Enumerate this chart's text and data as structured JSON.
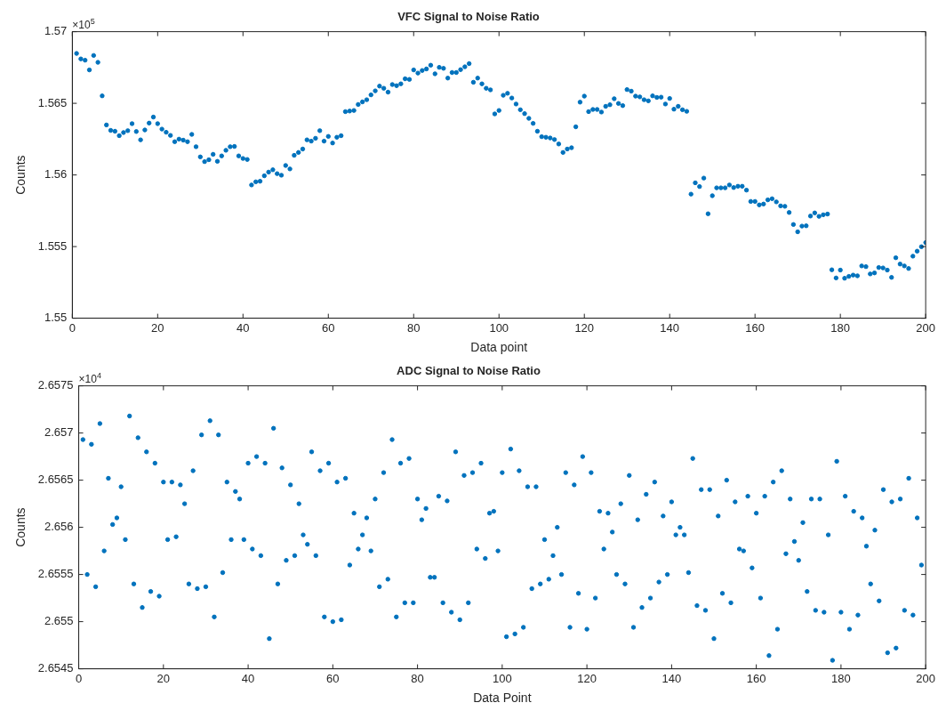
{
  "chart_data": [
    {
      "type": "scatter",
      "title": "VFC Signal to Noise Ratio",
      "xlabel": "Data point",
      "ylabel": "Counts",
      "annotations": [
        "×10$^{5}$"
      ],
      "marker": "circle",
      "xlim": [
        0,
        200
      ],
      "xticks": [
        0,
        20,
        40,
        60,
        80,
        100,
        120,
        140,
        160,
        180,
        200
      ],
      "ylim": [
        1.55,
        1.57
      ],
      "yticks": [
        1.55,
        1.555,
        1.56,
        1.565,
        1.57
      ],
      "x": [
        1,
        2,
        3,
        4,
        5,
        6,
        7,
        8,
        9,
        10,
        11,
        12,
        13,
        14,
        15,
        16,
        17,
        18,
        19,
        20,
        21,
        22,
        23,
        24,
        25,
        26,
        27,
        28,
        29,
        30,
        31,
        32,
        33,
        34,
        35,
        36,
        37,
        38,
        39,
        40,
        41,
        42,
        43,
        44,
        45,
        46,
        47,
        48,
        49,
        50,
        51,
        52,
        53,
        54,
        55,
        56,
        57,
        58,
        59,
        60,
        61,
        62,
        63,
        64,
        65,
        66,
        67,
        68,
        69,
        70,
        71,
        72,
        73,
        74,
        75,
        76,
        77,
        78,
        79,
        80,
        81,
        82,
        83,
        84,
        85,
        86,
        87,
        88,
        89,
        90,
        91,
        92,
        93,
        94,
        95,
        96,
        97,
        98,
        99,
        100,
        101,
        102,
        103,
        104,
        105,
        106,
        107,
        108,
        109,
        110,
        111,
        112,
        113,
        114,
        115,
        116,
        117,
        118,
        119,
        120,
        121,
        122,
        123,
        124,
        125,
        126,
        127,
        128,
        129,
        130,
        131,
        132,
        133,
        134,
        135,
        136,
        137,
        138,
        139,
        140,
        141,
        142,
        143,
        144,
        145,
        146,
        147,
        148,
        149,
        150,
        151,
        152,
        153,
        154,
        155,
        156,
        157,
        158,
        159,
        160,
        161,
        162,
        163,
        164,
        165,
        166,
        167,
        168,
        169,
        170,
        171,
        172,
        173,
        174,
        175,
        176,
        177,
        178,
        179,
        180,
        181,
        182,
        183,
        184,
        185,
        186,
        187,
        188,
        189,
        190,
        191,
        192,
        193,
        194,
        195,
        196,
        197,
        198,
        199,
        200
      ],
      "series": [
        {
          "color": "#0072bd",
          "values": [
            1.56848,
            1.5681,
            1.56801,
            1.56733,
            1.56834,
            1.56786,
            1.56552,
            1.56349,
            1.56311,
            1.56305,
            1.56274,
            1.56296,
            1.56309,
            1.56358,
            1.56303,
            1.56245,
            1.56314,
            1.56362,
            1.56404,
            1.56358,
            1.5632,
            1.56298,
            1.56276,
            1.56232,
            1.5625,
            1.56243,
            1.56232,
            1.56283,
            1.56197,
            1.56126,
            1.56093,
            1.56106,
            1.56144,
            1.56095,
            1.56133,
            1.56172,
            1.56197,
            1.56199,
            1.56133,
            1.56115,
            1.56108,
            1.5593,
            1.55952,
            1.55956,
            1.55994,
            1.5602,
            1.56036,
            1.56009,
            1.55998,
            1.56066,
            1.56042,
            1.56137,
            1.56157,
            1.56181,
            1.56245,
            1.56236,
            1.56256,
            1.56309,
            1.56236,
            1.56269,
            1.56223,
            1.56263,
            1.56274,
            1.56442,
            1.56446,
            1.5645,
            1.56492,
            1.5651,
            1.56525,
            1.56559,
            1.56587,
            1.5662,
            1.56605,
            1.56578,
            1.56631,
            1.56623,
            1.56636,
            1.56671,
            1.56667,
            1.56733,
            1.56711,
            1.56729,
            1.5674,
            1.56766,
            1.56706,
            1.56751,
            1.56744,
            1.56676,
            1.56715,
            1.56715,
            1.56735,
            1.56755,
            1.56777,
            1.56647,
            1.56676,
            1.56636,
            1.56605,
            1.56594,
            1.56426,
            1.5645,
            1.56556,
            1.5657,
            1.56537,
            1.56495,
            1.56455,
            1.56428,
            1.56395,
            1.5636,
            1.56305,
            1.56267,
            1.56263,
            1.56258,
            1.56247,
            1.56216,
            1.56157,
            1.56181,
            1.5619,
            1.56336,
            1.56508,
            1.5655,
            1.56442,
            1.56457,
            1.56457,
            1.56439,
            1.56479,
            1.5649,
            1.56532,
            1.56499,
            1.56484,
            1.56596,
            1.56585,
            1.5655,
            1.56545,
            1.56525,
            1.56517,
            1.56552,
            1.56541,
            1.56543,
            1.56495,
            1.56534,
            1.56459,
            1.56479,
            1.56455,
            1.56444,
            1.55866,
            1.55945,
            1.55919,
            1.55978,
            1.55729,
            1.55855,
            1.5591,
            1.5591,
            1.5591,
            1.5593,
            1.55912,
            1.55921,
            1.55921,
            1.55894,
            1.55815,
            1.55815,
            1.55791,
            1.55797,
            1.55826,
            1.55834,
            1.55812,
            1.55784,
            1.55781,
            1.55738,
            1.55654,
            1.55603,
            1.55643,
            1.55645,
            1.55713,
            1.55735,
            1.55711,
            1.55722,
            1.55727,
            1.55338,
            1.55281,
            1.55336,
            1.55279,
            1.55292,
            1.55301,
            1.55296,
            1.55365,
            1.5536,
            1.55309,
            1.55316,
            1.55354,
            1.55351,
            1.55336,
            1.55285,
            1.55422,
            1.55378,
            1.55365,
            1.55347,
            1.55433,
            1.55468,
            1.55499,
            1.55528
          ]
        }
      ]
    },
    {
      "type": "scatter",
      "title": "ADC Signal to Noise Ratio",
      "xlabel": "Data Point",
      "ylabel": "Counts",
      "annotations": [
        "×10$^{4}$"
      ],
      "marker": "circle",
      "xlim": [
        0,
        200
      ],
      "xticks": [
        0,
        20,
        40,
        60,
        80,
        100,
        120,
        140,
        160,
        180,
        200
      ],
      "ylim": [
        2.6545,
        2.6575
      ],
      "yticks": [
        2.6545,
        2.655,
        2.6555,
        2.656,
        2.6565,
        2.657,
        2.6575
      ],
      "x": [
        1,
        2,
        3,
        4,
        5,
        6,
        7,
        8,
        9,
        10,
        11,
        12,
        13,
        14,
        15,
        16,
        17,
        18,
        19,
        20,
        21,
        22,
        23,
        24,
        25,
        26,
        27,
        28,
        29,
        30,
        31,
        32,
        33,
        34,
        35,
        36,
        37,
        38,
        39,
        40,
        41,
        42,
        43,
        44,
        45,
        46,
        47,
        48,
        49,
        50,
        51,
        52,
        53,
        54,
        55,
        56,
        57,
        58,
        59,
        60,
        61,
        62,
        63,
        64,
        65,
        66,
        67,
        68,
        69,
        70,
        71,
        72,
        73,
        74,
        75,
        76,
        77,
        78,
        79,
        80,
        81,
        82,
        83,
        84,
        85,
        86,
        87,
        88,
        89,
        90,
        91,
        92,
        93,
        94,
        95,
        96,
        97,
        98,
        99,
        100,
        101,
        102,
        103,
        104,
        105,
        106,
        107,
        108,
        109,
        110,
        111,
        112,
        113,
        114,
        115,
        116,
        117,
        118,
        119,
        120,
        121,
        122,
        123,
        124,
        125,
        126,
        127,
        128,
        129,
        130,
        131,
        132,
        133,
        134,
        135,
        136,
        137,
        138,
        139,
        140,
        141,
        142,
        143,
        144,
        145,
        146,
        147,
        148,
        149,
        150,
        151,
        152,
        153,
        154,
        155,
        156,
        157,
        158,
        159,
        160,
        161,
        162,
        163,
        164,
        165,
        166,
        167,
        168,
        169,
        170,
        171,
        172,
        173,
        174,
        175,
        176,
        177,
        178,
        179,
        180,
        181,
        182,
        183,
        184,
        185,
        186,
        187,
        188,
        189,
        190,
        191,
        192,
        193,
        194,
        195,
        196,
        197,
        198,
        199
      ],
      "series": [
        {
          "color": "#0072bd",
          "values": [
            2.65693,
            2.6555,
            2.65688,
            2.65537,
            2.6571,
            2.65575,
            2.65652,
            2.65603,
            2.6561,
            2.65643,
            2.65587,
            2.65718,
            2.6554,
            2.65695,
            2.65515,
            2.6568,
            2.65532,
            2.65668,
            2.65527,
            2.65648,
            2.65587,
            2.65648,
            2.6559,
            2.65645,
            2.65625,
            2.6554,
            2.6566,
            2.65535,
            2.65698,
            2.65537,
            2.65713,
            2.65505,
            2.65698,
            2.65552,
            2.65648,
            2.65587,
            2.65638,
            2.6563,
            2.65587,
            2.65668,
            2.65577,
            2.65675,
            2.6557,
            2.65668,
            2.65482,
            2.65705,
            2.6554,
            2.65663,
            2.65565,
            2.65645,
            2.6557,
            2.65625,
            2.65592,
            2.65582,
            2.6568,
            2.6557,
            2.6566,
            2.65505,
            2.65668,
            2.655,
            2.65648,
            2.65502,
            2.65652,
            2.6556,
            2.65615,
            2.65577,
            2.65592,
            2.6561,
            2.65575,
            2.6563,
            2.65537,
            2.65658,
            2.65545,
            2.65693,
            2.65505,
            2.65668,
            2.6552,
            2.65673,
            2.6552,
            2.6563,
            2.65608,
            2.6562,
            2.65547,
            2.65547,
            2.65633,
            2.6552,
            2.65628,
            2.6551,
            2.6568,
            2.65502,
            2.65655,
            2.6552,
            2.65658,
            2.65577,
            2.65668,
            2.65567,
            2.65615,
            2.65617,
            2.65575,
            2.65658,
            2.65484,
            2.65683,
            2.65487,
            2.6566,
            2.65494,
            2.65643,
            2.65535,
            2.65643,
            2.6554,
            2.65587,
            2.65545,
            2.6557,
            2.656,
            2.6555,
            2.65658,
            2.65494,
            2.65645,
            2.6553,
            2.65675,
            2.65492,
            2.65658,
            2.65525,
            2.65617,
            2.65577,
            2.65615,
            2.65595,
            2.6555,
            2.65625,
            2.6554,
            2.65655,
            2.65494,
            2.65608,
            2.65515,
            2.65635,
            2.65525,
            2.65648,
            2.65542,
            2.65612,
            2.6555,
            2.65627,
            2.65592,
            2.656,
            2.65592,
            2.65552,
            2.65673,
            2.65517,
            2.6564,
            2.65512,
            2.6564,
            2.65482,
            2.65612,
            2.6553,
            2.6565,
            2.6552,
            2.65627,
            2.65577,
            2.65575,
            2.65633,
            2.65557,
            2.65615,
            2.65525,
            2.65633,
            2.65464,
            2.65648,
            2.65492,
            2.6566,
            2.65572,
            2.6563,
            2.65585,
            2.65565,
            2.65605,
            2.65532,
            2.6563,
            2.65512,
            2.6563,
            2.6551,
            2.65592,
            2.65459,
            2.6567,
            2.6551,
            2.65633,
            2.65492,
            2.65617,
            2.65507,
            2.6561,
            2.6558,
            2.6554,
            2.65597,
            2.65522,
            2.6564,
            2.65467,
            2.65627,
            2.65472,
            2.6563,
            2.65512,
            2.65652,
            2.65507,
            2.6561,
            2.6556
          ]
        }
      ]
    }
  ]
}
